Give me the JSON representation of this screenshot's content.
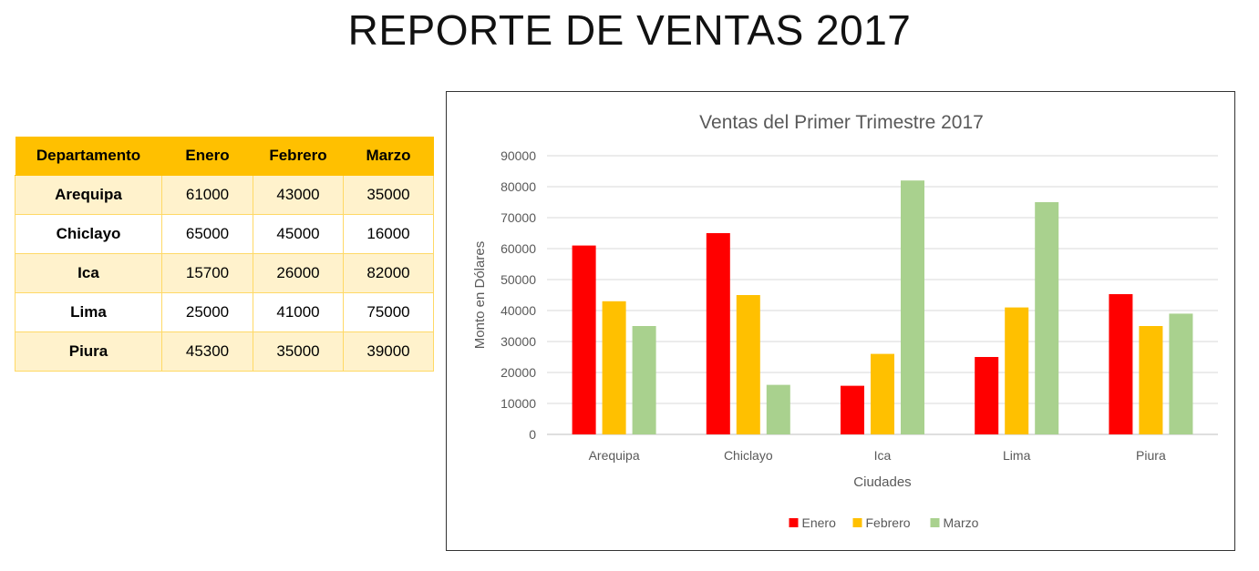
{
  "page": {
    "title": "REPORTE DE VENTAS 2017"
  },
  "table": {
    "headers": [
      "Departamento",
      "Enero",
      "Febrero",
      "Marzo"
    ],
    "rows": [
      [
        "Arequipa",
        "61000",
        "43000",
        "35000"
      ],
      [
        "Chiclayo",
        "65000",
        "45000",
        "16000"
      ],
      [
        "Ica",
        "15700",
        "26000",
        "82000"
      ],
      [
        "Lima",
        "25000",
        "41000",
        "75000"
      ],
      [
        "Piura",
        "45300",
        "35000",
        "39000"
      ]
    ]
  },
  "chart_data": {
    "type": "bar",
    "title": "Ventas del Primer Trimestre 2017",
    "xlabel": "Ciudades",
    "ylabel": "Monto en Dólares",
    "categories": [
      "Arequipa",
      "Chiclayo",
      "Ica",
      "Lima",
      "Piura"
    ],
    "series": [
      {
        "name": "Enero",
        "color": "#ff0000",
        "values": [
          61000,
          65000,
          15700,
          25000,
          45300
        ]
      },
      {
        "name": "Febrero",
        "color": "#ffc000",
        "values": [
          43000,
          45000,
          26000,
          41000,
          35000
        ]
      },
      {
        "name": "Marzo",
        "color": "#a9d18e",
        "values": [
          35000,
          16000,
          82000,
          75000,
          39000
        ]
      }
    ],
    "ylim": [
      0,
      90000
    ],
    "yticks": [
      0,
      10000,
      20000,
      30000,
      40000,
      50000,
      60000,
      70000,
      80000,
      90000
    ],
    "grid": true,
    "legend": "bottom"
  }
}
